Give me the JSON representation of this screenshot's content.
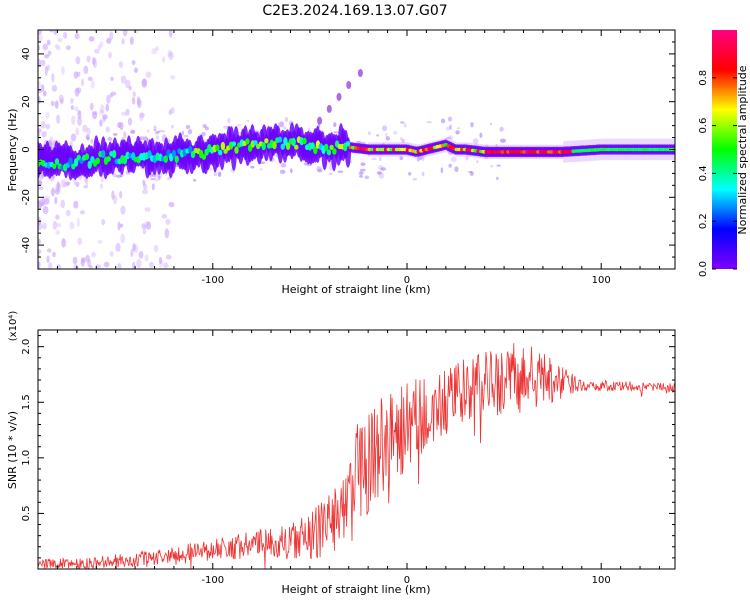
{
  "title": "C2E3.2024.169.13.07.G07",
  "chart_data": [
    {
      "type": "heatmap",
      "xlabel": "Height of straight line (km)",
      "ylabel": "Frequency (Hz)",
      "xlim": [
        -190,
        138
      ],
      "ylim": [
        -50,
        50
      ],
      "xticks": [
        -100,
        0,
        100
      ],
      "yticks": [
        -40,
        -20,
        0,
        20,
        40
      ],
      "colorbar": {
        "label": "Normalized spectral amplitude",
        "range": [
          0,
          1
        ],
        "ticks": [
          0.0,
          0.2,
          0.4,
          0.6,
          0.8
        ]
      },
      "ridge": [
        [
          -190,
          -4
        ],
        [
          -175,
          -6
        ],
        [
          -160,
          -4
        ],
        [
          -150,
          -3
        ],
        [
          -130,
          -3
        ],
        [
          -115,
          -2
        ],
        [
          -100,
          -1
        ],
        [
          -90,
          1
        ],
        [
          -80,
          2
        ],
        [
          -70,
          2
        ],
        [
          -60,
          3
        ],
        [
          -50,
          2
        ],
        [
          -45,
          1
        ],
        [
          -40,
          0
        ],
        [
          -35,
          1
        ],
        [
          -30,
          1
        ],
        [
          -20,
          0
        ],
        [
          -10,
          0
        ],
        [
          0,
          0
        ],
        [
          5,
          -1
        ],
        [
          10,
          0
        ],
        [
          20,
          2
        ],
        [
          25,
          0
        ],
        [
          30,
          0
        ],
        [
          40,
          -1
        ],
        [
          60,
          -1
        ],
        [
          80,
          -1
        ],
        [
          100,
          0
        ],
        [
          138,
          0
        ]
      ],
      "color_stops": [
        "#8000ff",
        "#0000ff",
        "#00ffff",
        "#00ff00",
        "#ffff00",
        "#ff0000",
        "#ff0080"
      ]
    },
    {
      "type": "line",
      "xlabel": "Height of straight line (km)",
      "ylabel": "SNR (10 * v/v)",
      "y_multiplier": "(x10⁴)",
      "xlim": [
        -190,
        138
      ],
      "ylim": [
        0,
        2.15
      ],
      "xticks": [
        -100,
        0,
        100
      ],
      "yticks": [
        0.5,
        1.0,
        1.5,
        2.0
      ],
      "series": [
        {
          "color": "#ee3333",
          "envelope": [
            [
              -190,
              0.05
            ],
            [
              -160,
              0.05
            ],
            [
              -140,
              0.08
            ],
            [
              -120,
              0.12
            ],
            [
              -100,
              0.18
            ],
            [
              -80,
              0.22
            ],
            [
              -60,
              0.25
            ],
            [
              -50,
              0.3
            ],
            [
              -40,
              0.4
            ],
            [
              -35,
              0.55
            ],
            [
              -30,
              0.7
            ],
            [
              -25,
              0.9
            ],
            [
              -20,
              1.0
            ],
            [
              -15,
              1.1
            ],
            [
              -10,
              1.2
            ],
            [
              0,
              1.25
            ],
            [
              10,
              1.35
            ],
            [
              20,
              1.5
            ],
            [
              30,
              1.6
            ],
            [
              40,
              1.65
            ],
            [
              50,
              1.7
            ],
            [
              60,
              1.72
            ],
            [
              70,
              1.7
            ],
            [
              80,
              1.67
            ],
            [
              90,
              1.66
            ],
            [
              100,
              1.65
            ],
            [
              120,
              1.64
            ],
            [
              138,
              1.63
            ]
          ],
          "noise": [
            [
              -190,
              0.04
            ],
            [
              -100,
              0.1
            ],
            [
              -60,
              0.15
            ],
            [
              -40,
              0.3
            ],
            [
              -20,
              0.5
            ],
            [
              0,
              0.45
            ],
            [
              20,
              0.3
            ],
            [
              40,
              0.3
            ],
            [
              60,
              0.35
            ],
            [
              80,
              0.15
            ],
            [
              90,
              0.05
            ],
            [
              138,
              0.04
            ]
          ]
        }
      ]
    }
  ]
}
